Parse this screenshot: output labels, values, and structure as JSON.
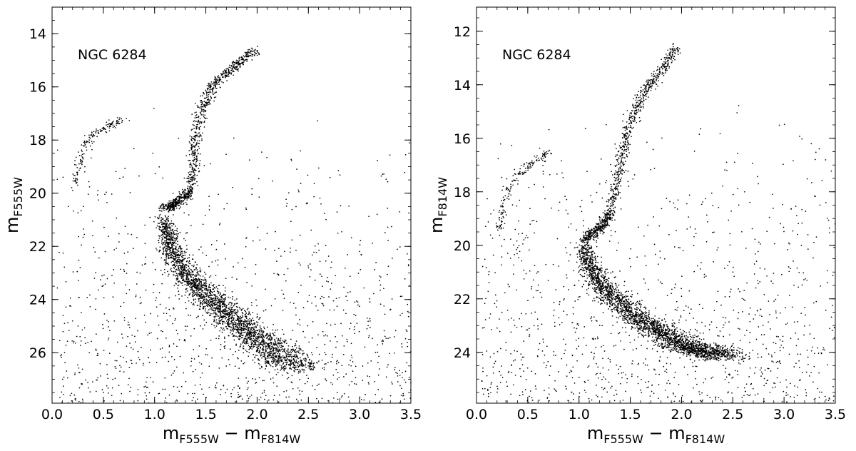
{
  "figure": {
    "panels_count": 2
  },
  "chart_data": [
    {
      "type": "scatter",
      "title": "",
      "annotation": "NGC 6284",
      "xlabel": {
        "main": "m",
        "sub1": "F555W",
        "dash": " − ",
        "main2": "m",
        "sub2": "F814W"
      },
      "ylabel": {
        "main": "m",
        "sub": "F555W"
      },
      "xlim": [
        0.0,
        3.5
      ],
      "ylim": [
        27.9,
        13.0
      ],
      "y_inverted": true,
      "x_ticks": [
        "0.0",
        "0.5",
        "1.0",
        "1.5",
        "2.0",
        "2.5",
        "3.0",
        "3.5"
      ],
      "x_tick_values": [
        0.0,
        0.5,
        1.0,
        1.5,
        2.0,
        2.5,
        3.0,
        3.5
      ],
      "y_ticks": [
        "14",
        "16",
        "18",
        "20",
        "22",
        "24",
        "26"
      ],
      "y_tick_values": [
        14,
        16,
        18,
        20,
        22,
        24,
        26
      ],
      "grid": false,
      "marker_color": "#000000",
      "features": {
        "main_sequence": [
          [
            1.1,
            21.0
          ],
          [
            1.15,
            22.0
          ],
          [
            1.3,
            23.0
          ],
          [
            1.55,
            24.0
          ],
          [
            1.85,
            25.0
          ],
          [
            2.05,
            25.6
          ],
          [
            2.25,
            26.2
          ],
          [
            2.4,
            26.6
          ]
        ],
        "subgiant_branch": [
          [
            1.1,
            20.6
          ],
          [
            1.2,
            20.4
          ],
          [
            1.3,
            20.1
          ],
          [
            1.35,
            19.9
          ]
        ],
        "red_giant_branch": [
          [
            1.35,
            19.9
          ],
          [
            1.38,
            19.0
          ],
          [
            1.4,
            18.0
          ],
          [
            1.45,
            17.0
          ],
          [
            1.55,
            16.0
          ],
          [
            1.7,
            15.5
          ],
          [
            1.85,
            15.0
          ],
          [
            2.0,
            14.6
          ]
        ],
        "horizontal_branch": [
          [
            0.22,
            19.7
          ],
          [
            0.25,
            19.0
          ],
          [
            0.3,
            18.3
          ],
          [
            0.38,
            17.8
          ],
          [
            0.5,
            17.6
          ],
          [
            0.6,
            17.4
          ],
          [
            0.7,
            17.2
          ]
        ]
      }
    },
    {
      "type": "scatter",
      "title": "",
      "annotation": "NGC 6284",
      "xlabel": {
        "main": "m",
        "sub1": "F555W",
        "dash": " − ",
        "main2": "m",
        "sub2": "F814W"
      },
      "ylabel": {
        "main": "m",
        "sub": "F814W"
      },
      "xlim": [
        0.0,
        3.5
      ],
      "ylim": [
        25.9,
        11.1
      ],
      "y_inverted": true,
      "x_ticks": [
        "0.0",
        "0.5",
        "1.0",
        "1.5",
        "2.0",
        "2.5",
        "3.0",
        "3.5"
      ],
      "x_tick_values": [
        0.0,
        0.5,
        1.0,
        1.5,
        2.0,
        2.5,
        3.0,
        3.5
      ],
      "y_ticks": [
        "12",
        "14",
        "16",
        "18",
        "20",
        "22",
        "24"
      ],
      "y_tick_values": [
        12,
        14,
        16,
        18,
        20,
        22,
        24
      ],
      "grid": false,
      "marker_color": "#000000",
      "features": {
        "main_sequence": [
          [
            1.05,
            20.0
          ],
          [
            1.1,
            20.8
          ],
          [
            1.25,
            21.6
          ],
          [
            1.5,
            22.5
          ],
          [
            1.8,
            23.3
          ],
          [
            2.05,
            23.8
          ],
          [
            2.25,
            24.0
          ],
          [
            2.45,
            24.1
          ]
        ],
        "subgiant_branch": [
          [
            1.05,
            19.8
          ],
          [
            1.15,
            19.5
          ],
          [
            1.25,
            19.2
          ],
          [
            1.3,
            18.8
          ]
        ],
        "red_giant_branch": [
          [
            1.3,
            18.8
          ],
          [
            1.35,
            18.0
          ],
          [
            1.4,
            17.0
          ],
          [
            1.45,
            16.0
          ],
          [
            1.55,
            15.0
          ],
          [
            1.65,
            14.2
          ],
          [
            1.8,
            13.5
          ],
          [
            1.95,
            12.6
          ]
        ],
        "horizontal_branch": [
          [
            0.22,
            19.5
          ],
          [
            0.25,
            18.8
          ],
          [
            0.3,
            18.0
          ],
          [
            0.38,
            17.5
          ],
          [
            0.5,
            17.0
          ],
          [
            0.6,
            16.8
          ],
          [
            0.7,
            16.5
          ]
        ]
      }
    }
  ]
}
